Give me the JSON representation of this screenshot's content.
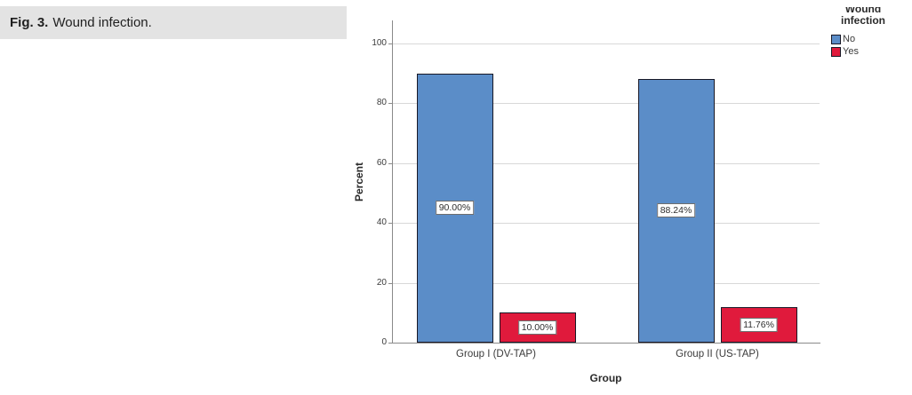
{
  "caption": {
    "prefix": "Fig. 3.",
    "text": "Wound infection."
  },
  "chart_data": {
    "type": "bar",
    "title": "",
    "categories": [
      "Group I (DV-TAP)",
      "Group II (US-TAP)"
    ],
    "series": [
      {
        "name": "No",
        "color": "#5b8dc8",
        "values": [
          90.0,
          88.24
        ],
        "labels": [
          "90.00%",
          "88.24%"
        ]
      },
      {
        "name": "Yes",
        "color": "#e01a3c",
        "values": [
          10.0,
          11.76
        ],
        "labels": [
          "10.00%",
          "11.76%"
        ]
      }
    ],
    "xlabel": "Group",
    "ylabel": "Percent",
    "ylim": [
      0,
      100
    ],
    "yticks": [
      0,
      20,
      40,
      60,
      80,
      100
    ],
    "grid": "horizontal",
    "legend": {
      "title_line1": "Wound",
      "title_line2": "infection",
      "position": "top-right",
      "entries": [
        "No",
        "Yes"
      ]
    }
  },
  "colors": {
    "bar_no": "#5b8dc8",
    "bar_yes": "#e01a3c",
    "bar_border": "#181826",
    "caption_background": "#e3e3e3",
    "gridline": "#d8d8d8",
    "axis": "#8a8a8a"
  }
}
